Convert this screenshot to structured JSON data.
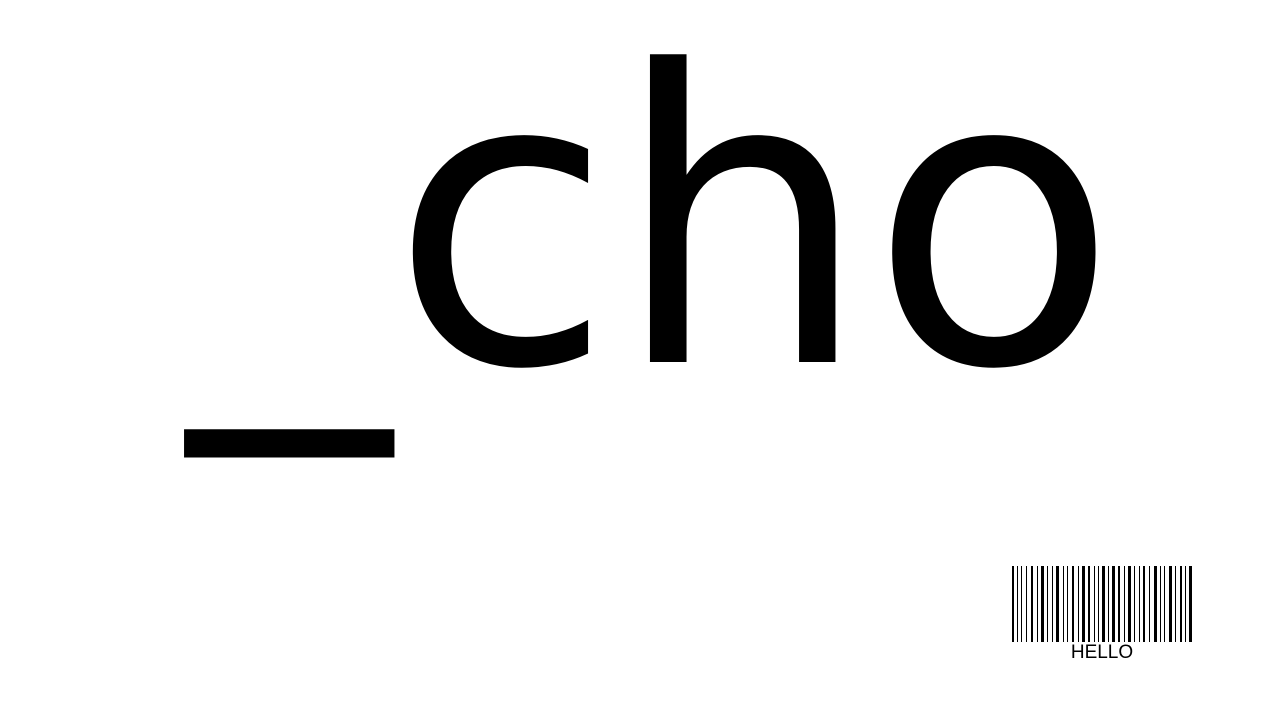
{
  "main_text": "_cho",
  "barcode": {
    "caption": "HELLO"
  },
  "colors": {
    "background": "#ffffff",
    "ink": "#000000"
  }
}
